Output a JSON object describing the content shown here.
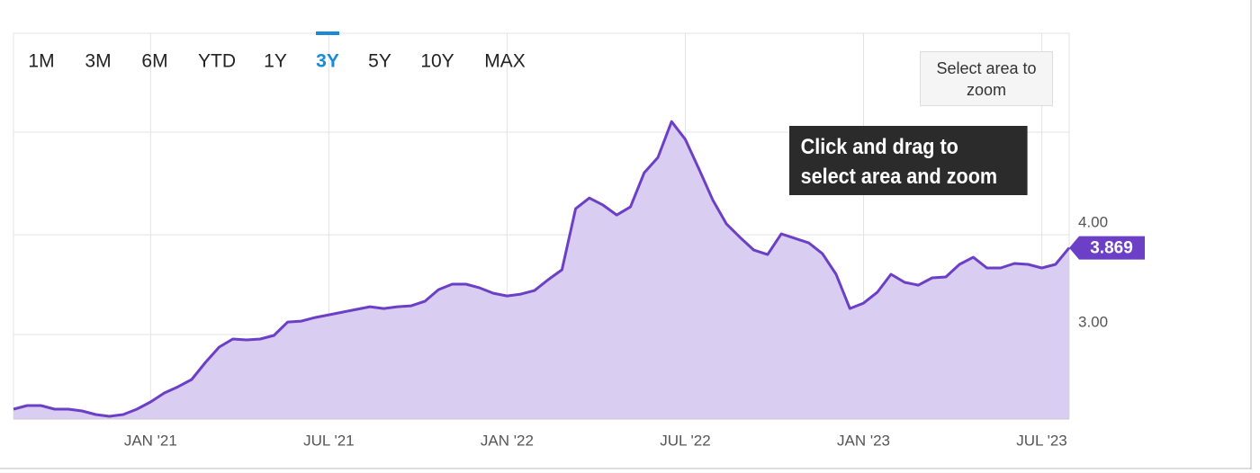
{
  "range_buttons": {
    "items": [
      "1M",
      "3M",
      "6M",
      "YTD",
      "1Y",
      "3Y",
      "5Y",
      "10Y",
      "MAX"
    ],
    "active": 5
  },
  "zoom_button": "Select area to zoom",
  "tooltip": "Click and drag to select area and zoom",
  "chart_data": {
    "type": "area",
    "categories": [
      null,
      null,
      null,
      null,
      null,
      null,
      null,
      null,
      null,
      null,
      "JAN '21",
      null,
      null,
      null,
      null,
      null,
      null,
      null,
      null,
      null,
      null,
      null,
      null,
      "JUL '21",
      null,
      null,
      null,
      null,
      null,
      null,
      null,
      null,
      null,
      null,
      null,
      null,
      "JAN '22",
      null,
      null,
      null,
      null,
      null,
      null,
      null,
      null,
      null,
      null,
      null,
      null,
      "JUL '22",
      null,
      null,
      null,
      null,
      null,
      null,
      null,
      null,
      null,
      null,
      null,
      null,
      "JAN '23",
      null,
      null,
      null,
      null,
      null,
      null,
      null,
      null,
      null,
      null,
      null,
      null,
      "JUL '23",
      null,
      null
    ],
    "values": [
      2.252,
      2.288,
      2.288,
      2.252,
      2.252,
      2.234,
      2.198,
      2.18,
      2.198,
      2.252,
      2.324,
      2.414,
      2.477,
      2.55,
      2.721,
      2.874,
      2.955,
      2.946,
      2.955,
      2.991,
      3.126,
      3.135,
      3.171,
      3.198,
      3.225,
      3.252,
      3.279,
      3.261,
      3.279,
      3.288,
      3.333,
      3.45,
      3.505,
      3.505,
      3.468,
      3.414,
      3.387,
      3.405,
      3.441,
      3.55,
      3.649,
      4.261,
      4.369,
      4.297,
      4.198,
      4.279,
      4.622,
      4.775,
      5.135,
      4.955,
      4.658,
      4.351,
      4.108,
      3.973,
      3.847,
      3.802,
      4.009,
      3.964,
      3.919,
      3.811,
      3.604,
      3.261,
      3.315,
      3.423,
      3.604,
      3.523,
      3.495,
      3.568,
      3.577,
      3.703,
      3.775,
      3.667,
      3.667,
      3.712,
      3.703,
      3.667,
      3.703,
      3.869
    ],
    "color": "#6b3fc6",
    "fill_color": "#d9cdf1",
    "ylim": [
      2.153,
      6.02
    ],
    "yticks": [
      {
        "value": 4,
        "label": "4.00"
      },
      {
        "value": 3,
        "label": "3.00"
      }
    ],
    "grid": true
  }
}
